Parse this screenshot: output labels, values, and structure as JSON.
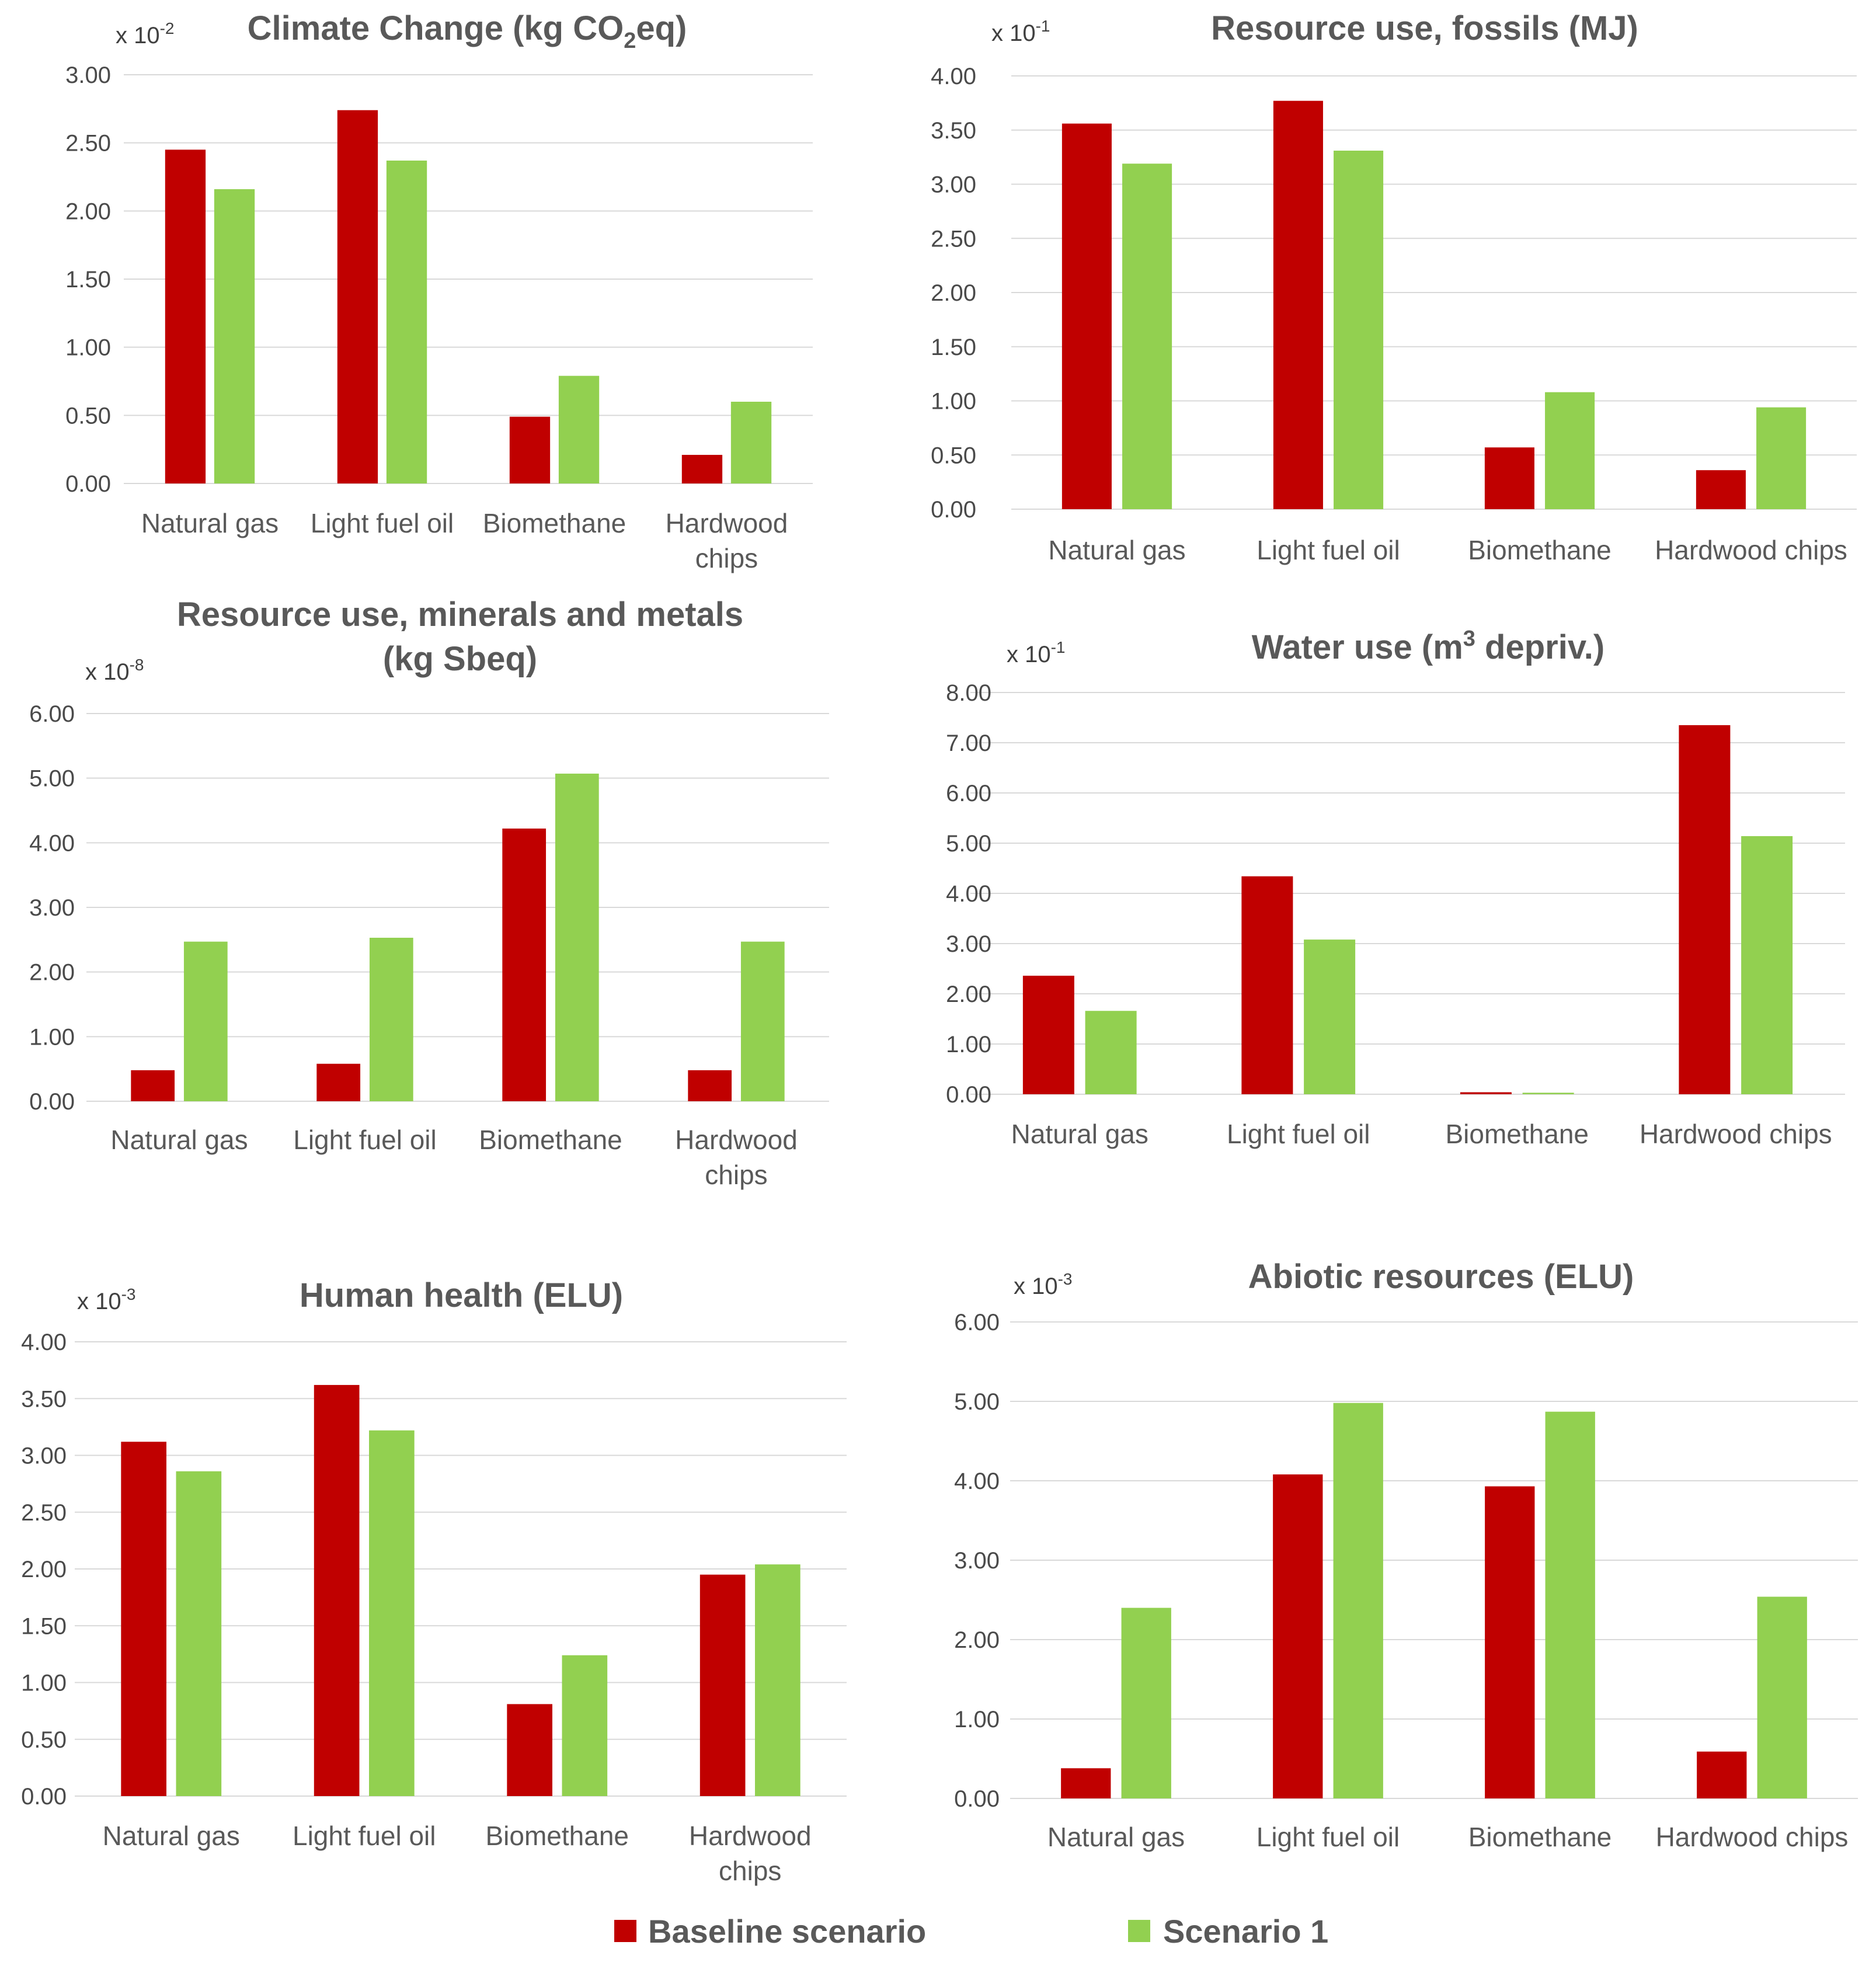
{
  "colors": {
    "baseline": "#c00000",
    "scenario1": "#92d050"
  },
  "legend": {
    "baseline_label": "Baseline scenario",
    "scenario1_label": "Scenario 1",
    "placement": "bottom-center"
  },
  "chart_data": [
    {
      "type": "bar",
      "title_parts": [
        "Climate Change (kg CO",
        "2",
        "eq)"
      ],
      "title_styles": [
        "normal",
        "sub",
        "normal"
      ],
      "multiplier_parts": [
        "x 10",
        "-2"
      ],
      "categories": [
        [
          "Natural gas"
        ],
        [
          "Light fuel oil"
        ],
        [
          "Biomethane"
        ],
        [
          "Hardwood",
          "chips"
        ]
      ],
      "ylim": [
        0,
        3
      ],
      "ytick_labels": [
        "0.00",
        "0.50",
        "1.00",
        "1.50",
        "2.00",
        "2.50",
        "3.00"
      ],
      "series": [
        {
          "name": "Baseline scenario",
          "values": [
            2.45,
            2.74,
            0.49,
            0.21
          ]
        },
        {
          "name": "Scenario 1",
          "values": [
            2.16,
            2.37,
            0.79,
            0.6
          ]
        }
      ]
    },
    {
      "type": "bar",
      "title_parts": [
        "Resource use, fossils (MJ)"
      ],
      "title_styles": [
        "normal"
      ],
      "multiplier_parts": [
        "x 10",
        "-1"
      ],
      "categories": [
        [
          "Natural gas"
        ],
        [
          "Light fuel oil"
        ],
        [
          "Biomethane"
        ],
        [
          "Hardwood chips"
        ]
      ],
      "ylim": [
        0,
        4
      ],
      "ytick_labels": [
        "0.00",
        "0.50",
        "1.00",
        "1.50",
        "2.00",
        "2.50",
        "3.00",
        "3.50",
        "4.00"
      ],
      "series": [
        {
          "name": "Baseline scenario",
          "values": [
            3.56,
            3.77,
            0.57,
            0.36
          ]
        },
        {
          "name": "Scenario 1",
          "values": [
            3.19,
            3.31,
            1.08,
            0.94
          ]
        }
      ]
    },
    {
      "type": "bar",
      "title_parts": [
        "Resource use, minerals and metals",
        "(kg Sbeq)"
      ],
      "title_styles": [
        "line",
        "line"
      ],
      "multiplier_parts": [
        "x 10",
        "-8"
      ],
      "categories": [
        [
          "Natural gas"
        ],
        [
          "Light fuel oil"
        ],
        [
          "Biomethane"
        ],
        [
          "Hardwood",
          "chips"
        ]
      ],
      "ylim": [
        0,
        6
      ],
      "ytick_labels": [
        "0.00",
        "1.00",
        "2.00",
        "3.00",
        "4.00",
        "5.00",
        "6.00"
      ],
      "series": [
        {
          "name": "Baseline scenario",
          "values": [
            0.48,
            0.58,
            4.22,
            0.48
          ]
        },
        {
          "name": "Scenario 1",
          "values": [
            2.47,
            2.53,
            5.07,
            2.47
          ]
        }
      ]
    },
    {
      "type": "bar",
      "title_parts": [
        "Water use (m",
        "3",
        " depriv.)"
      ],
      "title_styles": [
        "normal",
        "sup",
        "normal"
      ],
      "multiplier_parts": [
        "x 10",
        "-1"
      ],
      "categories": [
        [
          "Natural gas"
        ],
        [
          "Light fuel oil"
        ],
        [
          "Biomethane"
        ],
        [
          "Hardwood chips"
        ]
      ],
      "ylim": [
        0,
        8
      ],
      "ytick_labels": [
        "0.00",
        "1.00",
        "2.00",
        "3.00",
        "4.00",
        "5.00",
        "6.00",
        "7.00",
        "8.00"
      ],
      "series": [
        {
          "name": "Baseline scenario",
          "values": [
            2.36,
            4.34,
            0.04,
            7.35
          ]
        },
        {
          "name": "Scenario 1",
          "values": [
            1.66,
            3.08,
            0.03,
            5.14
          ]
        }
      ]
    },
    {
      "type": "bar",
      "title_parts": [
        "Human health (ELU)"
      ],
      "title_styles": [
        "normal"
      ],
      "multiplier_parts": [
        "x 10",
        "-3"
      ],
      "categories": [
        [
          "Natural gas"
        ],
        [
          "Light fuel oil"
        ],
        [
          "Biomethane"
        ],
        [
          "Hardwood",
          "chips"
        ]
      ],
      "ylim": [
        0,
        4
      ],
      "ytick_labels": [
        "0.00",
        "0.50",
        "1.00",
        "1.50",
        "2.00",
        "2.50",
        "3.00",
        "3.50",
        "4.00"
      ],
      "series": [
        {
          "name": "Baseline scenario",
          "values": [
            3.12,
            3.62,
            0.81,
            1.95
          ]
        },
        {
          "name": "Scenario 1",
          "values": [
            2.86,
            3.22,
            1.24,
            2.04
          ]
        }
      ]
    },
    {
      "type": "bar",
      "title_parts": [
        "Abiotic resources (ELU)"
      ],
      "title_styles": [
        "normal"
      ],
      "multiplier_parts": [
        "x 10",
        "-3"
      ],
      "categories": [
        [
          "Natural gas"
        ],
        [
          "Light fuel oil"
        ],
        [
          "Biomethane"
        ],
        [
          "Hardwood chips"
        ]
      ],
      "ylim": [
        0,
        6
      ],
      "ytick_labels": [
        "0.00",
        "1.00",
        "2.00",
        "3.00",
        "4.00",
        "5.00",
        "6.00"
      ],
      "series": [
        {
          "name": "Baseline scenario",
          "values": [
            0.38,
            4.08,
            3.93,
            0.59
          ]
        },
        {
          "name": "Scenario 1",
          "values": [
            2.4,
            4.98,
            4.87,
            2.54
          ]
        }
      ]
    }
  ]
}
